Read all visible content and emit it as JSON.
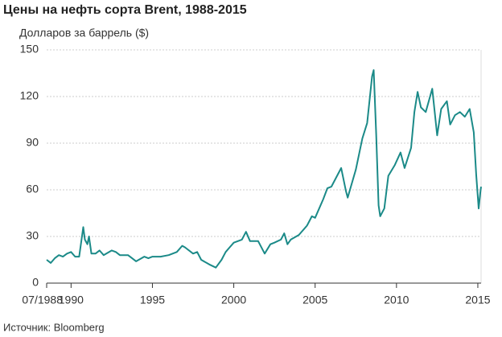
{
  "chart_data": {
    "type": "line",
    "title": "Цены на нефть сорта Brent, 1988-2015",
    "y_label": "Долларов за баррель ($)",
    "source": "Источник: Bloomberg",
    "color": "#1b8a88",
    "grid": true,
    "xlim": [
      1988.5,
      2015.2
    ],
    "ylim": [
      0,
      150
    ],
    "xticks": [
      {
        "value": 1988.5,
        "label": "07/1988"
      },
      1990,
      1995,
      2000,
      2005,
      2010,
      2015
    ],
    "yticks": [
      0,
      30,
      60,
      90,
      120,
      150
    ],
    "x": [
      1988.5,
      1988.75,
      1989.0,
      1989.25,
      1989.5,
      1989.75,
      1990.0,
      1990.25,
      1990.5,
      1990.67,
      1990.75,
      1990.85,
      1991.0,
      1991.1,
      1991.25,
      1991.5,
      1991.75,
      1992.0,
      1992.5,
      1992.75,
      1993.0,
      1993.5,
      1993.75,
      1994.0,
      1994.5,
      1994.75,
      1995.0,
      1995.5,
      1996.0,
      1996.5,
      1996.83,
      1997.0,
      1997.5,
      1997.75,
      1998.0,
      1998.5,
      1998.9,
      1999.25,
      1999.5,
      1999.75,
      2000.0,
      2000.5,
      2000.75,
      2001.0,
      2001.5,
      2001.9,
      2002.25,
      2002.5,
      2002.9,
      2003.1,
      2003.3,
      2003.5,
      2004.0,
      2004.5,
      2004.8,
      2005.0,
      2005.5,
      2005.75,
      2006.0,
      2006.6,
      2006.9,
      2007.0,
      2007.5,
      2007.9,
      2008.2,
      2008.5,
      2008.6,
      2008.75,
      2008.9,
      2009.0,
      2009.25,
      2009.5,
      2009.9,
      2010.25,
      2010.5,
      2010.9,
      2011.1,
      2011.3,
      2011.5,
      2011.8,
      2012.2,
      2012.5,
      2012.75,
      2013.1,
      2013.3,
      2013.6,
      2013.9,
      2014.2,
      2014.5,
      2014.75,
      2014.9,
      2015.05,
      2015.15,
      2015.2
    ],
    "values": [
      15,
      13,
      16,
      18,
      17,
      19,
      20,
      17,
      17,
      30,
      36,
      28,
      25,
      30,
      19,
      19,
      21,
      18,
      21,
      20,
      18,
      18,
      16,
      14,
      17,
      16,
      17,
      17,
      18,
      20,
      24,
      23,
      19,
      20,
      15,
      12,
      10,
      15,
      20,
      23,
      26,
      28,
      33,
      27,
      27,
      19,
      25,
      26,
      28,
      32,
      25,
      28,
      31,
      37,
      43,
      42,
      54,
      61,
      62,
      74,
      59,
      55,
      73,
      93,
      103,
      133,
      137,
      96,
      50,
      43,
      48,
      69,
      76,
      84,
      74,
      87,
      110,
      123,
      113,
      110,
      125,
      95,
      112,
      117,
      102,
      108,
      110,
      107,
      112,
      97,
      70,
      48,
      58,
      62
    ]
  }
}
